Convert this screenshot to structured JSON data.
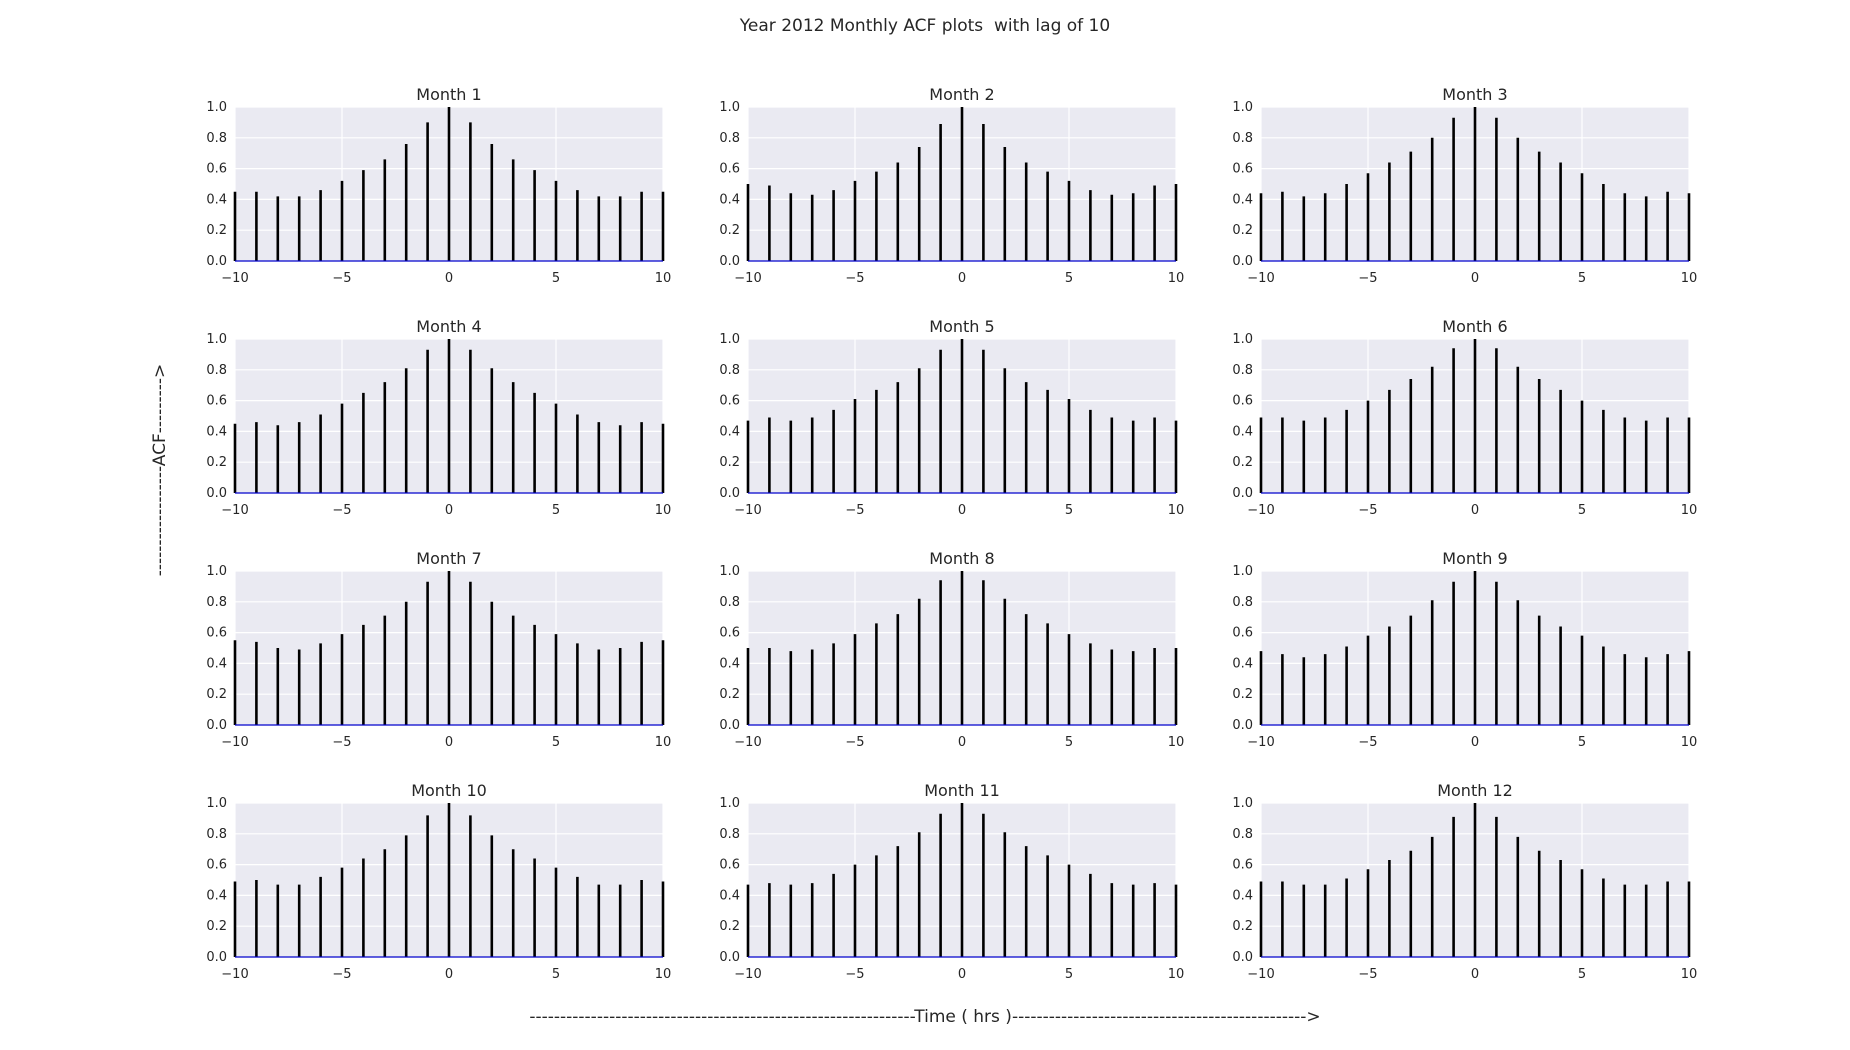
{
  "figure": {
    "title": "Year 2012 Monthly ACF plots  with lag of 10",
    "ylabel": "ACF",
    "xlabel": "Time ( hrs )",
    "ylabel_text": "------------------ACF--------->",
    "xlabel_text": "---------------------------------------------------------------Time ( hrs )------------------------------------------------>"
  },
  "colors": {
    "plot_bg": "#EAEAF2",
    "grid": "#FFFFFF",
    "stem": "#000000",
    "baseline": "#0000CC"
  },
  "chart_data": [
    {
      "type": "bar",
      "title": "Month 1",
      "x": [
        -10,
        -9,
        -8,
        -7,
        -6,
        -5,
        -4,
        -3,
        -2,
        -1,
        0,
        1,
        2,
        3,
        4,
        5,
        6,
        7,
        8,
        9,
        10
      ],
      "values": [
        0.45,
        0.45,
        0.42,
        0.42,
        0.46,
        0.52,
        0.59,
        0.66,
        0.76,
        0.9,
        1.0,
        0.9,
        0.76,
        0.66,
        0.59,
        0.52,
        0.46,
        0.42,
        0.42,
        0.45,
        0.45
      ],
      "xlim": [
        -10,
        10
      ],
      "ylim": [
        0,
        1
      ],
      "xticks": [
        -10,
        -5,
        0,
        5,
        10
      ],
      "yticks": [
        0.0,
        0.2,
        0.4,
        0.6,
        0.8,
        1.0
      ],
      "grid": true
    },
    {
      "type": "bar",
      "title": "Month 2",
      "x": [
        -10,
        -9,
        -8,
        -7,
        -6,
        -5,
        -4,
        -3,
        -2,
        -1,
        0,
        1,
        2,
        3,
        4,
        5,
        6,
        7,
        8,
        9,
        10
      ],
      "values": [
        0.5,
        0.49,
        0.44,
        0.43,
        0.46,
        0.52,
        0.58,
        0.64,
        0.74,
        0.89,
        1.0,
        0.89,
        0.74,
        0.64,
        0.58,
        0.52,
        0.46,
        0.43,
        0.44,
        0.49,
        0.5
      ],
      "xlim": [
        -10,
        10
      ],
      "ylim": [
        0,
        1
      ],
      "xticks": [
        -10,
        -5,
        0,
        5,
        10
      ],
      "yticks": [
        0.0,
        0.2,
        0.4,
        0.6,
        0.8,
        1.0
      ],
      "grid": true
    },
    {
      "type": "bar",
      "title": "Month 3",
      "x": [
        -10,
        -9,
        -8,
        -7,
        -6,
        -5,
        -4,
        -3,
        -2,
        -1,
        0,
        1,
        2,
        3,
        4,
        5,
        6,
        7,
        8,
        9,
        10
      ],
      "values": [
        0.44,
        0.45,
        0.42,
        0.44,
        0.5,
        0.57,
        0.64,
        0.71,
        0.8,
        0.93,
        1.0,
        0.93,
        0.8,
        0.71,
        0.64,
        0.57,
        0.5,
        0.44,
        0.42,
        0.45,
        0.44
      ],
      "xlim": [
        -10,
        10
      ],
      "ylim": [
        0,
        1
      ],
      "xticks": [
        -10,
        -5,
        0,
        5,
        10
      ],
      "yticks": [
        0.0,
        0.2,
        0.4,
        0.6,
        0.8,
        1.0
      ],
      "grid": true
    },
    {
      "type": "bar",
      "title": "Month 4",
      "x": [
        -10,
        -9,
        -8,
        -7,
        -6,
        -5,
        -4,
        -3,
        -2,
        -1,
        0,
        1,
        2,
        3,
        4,
        5,
        6,
        7,
        8,
        9,
        10
      ],
      "values": [
        0.45,
        0.46,
        0.44,
        0.46,
        0.51,
        0.58,
        0.65,
        0.72,
        0.81,
        0.93,
        1.0,
        0.93,
        0.81,
        0.72,
        0.65,
        0.58,
        0.51,
        0.46,
        0.44,
        0.46,
        0.45
      ],
      "xlim": [
        -10,
        10
      ],
      "ylim": [
        0,
        1
      ],
      "xticks": [
        -10,
        -5,
        0,
        5,
        10
      ],
      "yticks": [
        0.0,
        0.2,
        0.4,
        0.6,
        0.8,
        1.0
      ],
      "grid": true
    },
    {
      "type": "bar",
      "title": "Month 5",
      "x": [
        -10,
        -9,
        -8,
        -7,
        -6,
        -5,
        -4,
        -3,
        -2,
        -1,
        0,
        1,
        2,
        3,
        4,
        5,
        6,
        7,
        8,
        9,
        10
      ],
      "values": [
        0.47,
        0.49,
        0.47,
        0.49,
        0.54,
        0.61,
        0.67,
        0.72,
        0.81,
        0.93,
        1.0,
        0.93,
        0.81,
        0.72,
        0.67,
        0.61,
        0.54,
        0.49,
        0.47,
        0.49,
        0.47
      ],
      "xlim": [
        -10,
        10
      ],
      "ylim": [
        0,
        1
      ],
      "xticks": [
        -10,
        -5,
        0,
        5,
        10
      ],
      "yticks": [
        0.0,
        0.2,
        0.4,
        0.6,
        0.8,
        1.0
      ],
      "grid": true
    },
    {
      "type": "bar",
      "title": "Month 6",
      "x": [
        -10,
        -9,
        -8,
        -7,
        -6,
        -5,
        -4,
        -3,
        -2,
        -1,
        0,
        1,
        2,
        3,
        4,
        5,
        6,
        7,
        8,
        9,
        10
      ],
      "values": [
        0.49,
        0.49,
        0.47,
        0.49,
        0.54,
        0.6,
        0.67,
        0.74,
        0.82,
        0.94,
        1.0,
        0.94,
        0.82,
        0.74,
        0.67,
        0.6,
        0.54,
        0.49,
        0.47,
        0.49,
        0.49
      ],
      "xlim": [
        -10,
        10
      ],
      "ylim": [
        0,
        1
      ],
      "xticks": [
        -10,
        -5,
        0,
        5,
        10
      ],
      "yticks": [
        0.0,
        0.2,
        0.4,
        0.6,
        0.8,
        1.0
      ],
      "grid": true
    },
    {
      "type": "bar",
      "title": "Month 7",
      "x": [
        -10,
        -9,
        -8,
        -7,
        -6,
        -5,
        -4,
        -3,
        -2,
        -1,
        0,
        1,
        2,
        3,
        4,
        5,
        6,
        7,
        8,
        9,
        10
      ],
      "values": [
        0.55,
        0.54,
        0.5,
        0.49,
        0.53,
        0.59,
        0.65,
        0.71,
        0.8,
        0.93,
        1.0,
        0.93,
        0.8,
        0.71,
        0.65,
        0.59,
        0.53,
        0.49,
        0.5,
        0.54,
        0.55
      ],
      "xlim": [
        -10,
        10
      ],
      "ylim": [
        0,
        1
      ],
      "xticks": [
        -10,
        -5,
        0,
        5,
        10
      ],
      "yticks": [
        0.0,
        0.2,
        0.4,
        0.6,
        0.8,
        1.0
      ],
      "grid": true
    },
    {
      "type": "bar",
      "title": "Month 8",
      "x": [
        -10,
        -9,
        -8,
        -7,
        -6,
        -5,
        -4,
        -3,
        -2,
        -1,
        0,
        1,
        2,
        3,
        4,
        5,
        6,
        7,
        8,
        9,
        10
      ],
      "values": [
        0.5,
        0.5,
        0.48,
        0.49,
        0.53,
        0.59,
        0.66,
        0.72,
        0.82,
        0.94,
        1.0,
        0.94,
        0.82,
        0.72,
        0.66,
        0.59,
        0.53,
        0.49,
        0.48,
        0.5,
        0.5
      ],
      "xlim": [
        -10,
        10
      ],
      "ylim": [
        0,
        1
      ],
      "xticks": [
        -10,
        -5,
        0,
        5,
        10
      ],
      "yticks": [
        0.0,
        0.2,
        0.4,
        0.6,
        0.8,
        1.0
      ],
      "grid": true
    },
    {
      "type": "bar",
      "title": "Month 9",
      "x": [
        -10,
        -9,
        -8,
        -7,
        -6,
        -5,
        -4,
        -3,
        -2,
        -1,
        0,
        1,
        2,
        3,
        4,
        5,
        6,
        7,
        8,
        9,
        10
      ],
      "values": [
        0.48,
        0.46,
        0.44,
        0.46,
        0.51,
        0.58,
        0.64,
        0.71,
        0.81,
        0.93,
        1.0,
        0.93,
        0.81,
        0.71,
        0.64,
        0.58,
        0.51,
        0.46,
        0.44,
        0.46,
        0.48
      ],
      "xlim": [
        -10,
        10
      ],
      "ylim": [
        0,
        1
      ],
      "xticks": [
        -10,
        -5,
        0,
        5,
        10
      ],
      "yticks": [
        0.0,
        0.2,
        0.4,
        0.6,
        0.8,
        1.0
      ],
      "grid": true
    },
    {
      "type": "bar",
      "title": "Month 10",
      "x": [
        -10,
        -9,
        -8,
        -7,
        -6,
        -5,
        -4,
        -3,
        -2,
        -1,
        0,
        1,
        2,
        3,
        4,
        5,
        6,
        7,
        8,
        9,
        10
      ],
      "values": [
        0.49,
        0.5,
        0.47,
        0.47,
        0.52,
        0.58,
        0.64,
        0.7,
        0.79,
        0.92,
        1.0,
        0.92,
        0.79,
        0.7,
        0.64,
        0.58,
        0.52,
        0.47,
        0.47,
        0.5,
        0.49
      ],
      "xlim": [
        -10,
        10
      ],
      "ylim": [
        0,
        1
      ],
      "xticks": [
        -10,
        -5,
        0,
        5,
        10
      ],
      "yticks": [
        0.0,
        0.2,
        0.4,
        0.6,
        0.8,
        1.0
      ],
      "grid": true
    },
    {
      "type": "bar",
      "title": "Month 11",
      "x": [
        -10,
        -9,
        -8,
        -7,
        -6,
        -5,
        -4,
        -3,
        -2,
        -1,
        0,
        1,
        2,
        3,
        4,
        5,
        6,
        7,
        8,
        9,
        10
      ],
      "values": [
        0.47,
        0.48,
        0.47,
        0.48,
        0.54,
        0.6,
        0.66,
        0.72,
        0.81,
        0.93,
        1.0,
        0.93,
        0.81,
        0.72,
        0.66,
        0.6,
        0.54,
        0.48,
        0.47,
        0.48,
        0.47
      ],
      "xlim": [
        -10,
        10
      ],
      "ylim": [
        0,
        1
      ],
      "xticks": [
        -10,
        -5,
        0,
        5,
        10
      ],
      "yticks": [
        0.0,
        0.2,
        0.4,
        0.6,
        0.8,
        1.0
      ],
      "grid": true
    },
    {
      "type": "bar",
      "title": "Month 12",
      "x": [
        -10,
        -9,
        -8,
        -7,
        -6,
        -5,
        -4,
        -3,
        -2,
        -1,
        0,
        1,
        2,
        3,
        4,
        5,
        6,
        7,
        8,
        9,
        10
      ],
      "values": [
        0.49,
        0.49,
        0.47,
        0.47,
        0.51,
        0.57,
        0.63,
        0.69,
        0.78,
        0.91,
        1.0,
        0.91,
        0.78,
        0.69,
        0.63,
        0.57,
        0.51,
        0.47,
        0.47,
        0.49,
        0.49
      ],
      "xlim": [
        -10,
        10
      ],
      "ylim": [
        0,
        1
      ],
      "xticks": [
        -10,
        -5,
        0,
        5,
        10
      ],
      "yticks": [
        0.0,
        0.2,
        0.4,
        0.6,
        0.8,
        1.0
      ],
      "grid": true
    }
  ]
}
